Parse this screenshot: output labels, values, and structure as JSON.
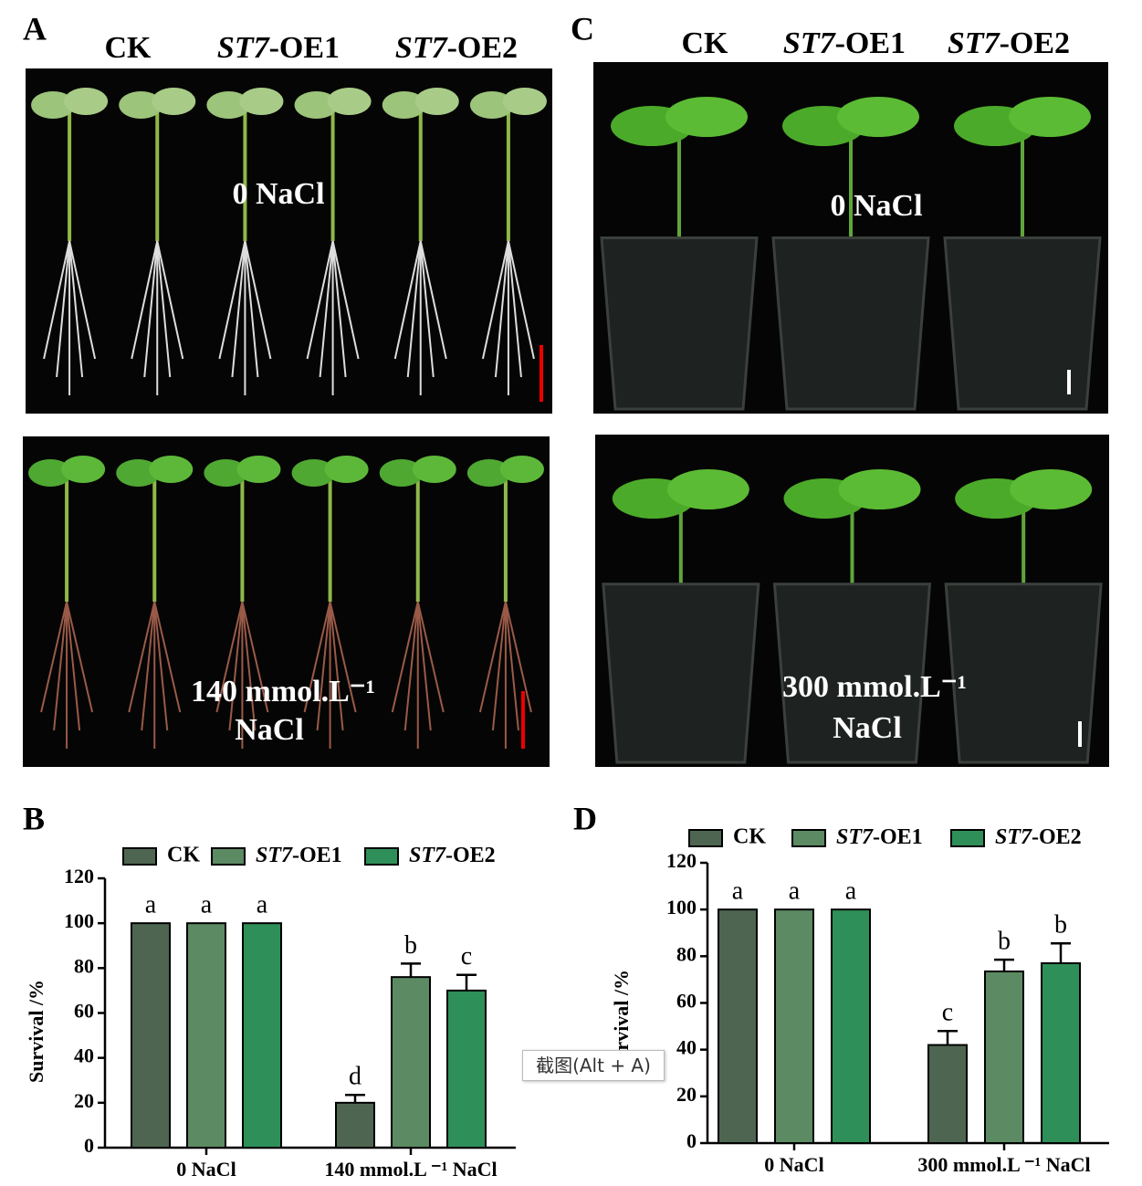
{
  "panels": [
    {
      "label": "A",
      "columns": [
        "CK",
        "ST7-OE1",
        "ST7-OE2"
      ],
      "top_treatment": "0 NaCl",
      "bottom_treatment": [
        "140 mmol.L⁻¹",
        "NaCl"
      ]
    },
    {
      "label": "C",
      "columns": [
        "CK",
        "ST7-OE1",
        "ST7-OE2"
      ],
      "top_treatment": "0  NaCl",
      "bottom_treatment": [
        "300 mmol.L⁻¹",
        "NaCl"
      ]
    }
  ],
  "chart_data": [
    {
      "type": "bar",
      "panel": "B",
      "y_label": "Survival /%",
      "categories": [
        "0 NaCl",
        "140 mmol.L ⁻¹ NaCl"
      ],
      "series": [
        {
          "name": "CK",
          "color": "#4e6651",
          "values": [
            100,
            20
          ],
          "errors": [
            0,
            3.5
          ],
          "letters": [
            "a",
            "d"
          ]
        },
        {
          "name": "ST7-OE1",
          "color": "#5b8a63",
          "values": [
            100,
            76
          ],
          "errors": [
            0,
            6
          ],
          "letters": [
            "a",
            "b"
          ]
        },
        {
          "name": "ST7-OE2",
          "color": "#2f8f58",
          "values": [
            100,
            70
          ],
          "errors": [
            0,
            7
          ],
          "letters": [
            "a",
            "c"
          ]
        }
      ],
      "ylim": [
        0,
        120
      ],
      "yticks": [
        0,
        20,
        40,
        60,
        80,
        100,
        120
      ]
    },
    {
      "type": "bar",
      "panel": "D",
      "y_label": "Survival /%",
      "categories": [
        "0 NaCl",
        "300 mmol.L ⁻¹ NaCl"
      ],
      "series": [
        {
          "name": "CK",
          "color": "#4e6651",
          "values": [
            100,
            42
          ],
          "errors": [
            0,
            6
          ],
          "letters": [
            "a",
            "c"
          ]
        },
        {
          "name": "ST7-OE1",
          "color": "#5b8a63",
          "values": [
            100,
            73.5
          ],
          "errors": [
            0,
            5
          ],
          "letters": [
            "a",
            "b"
          ]
        },
        {
          "name": "ST7-OE2",
          "color": "#2f8f58",
          "values": [
            100,
            77
          ],
          "errors": [
            0,
            8.5
          ],
          "letters": [
            "a",
            "b"
          ]
        }
      ],
      "ylim": [
        0,
        120
      ],
      "yticks": [
        0,
        20,
        40,
        60,
        80,
        100,
        120
      ]
    }
  ],
  "tooltip": "截图(Alt + A)"
}
